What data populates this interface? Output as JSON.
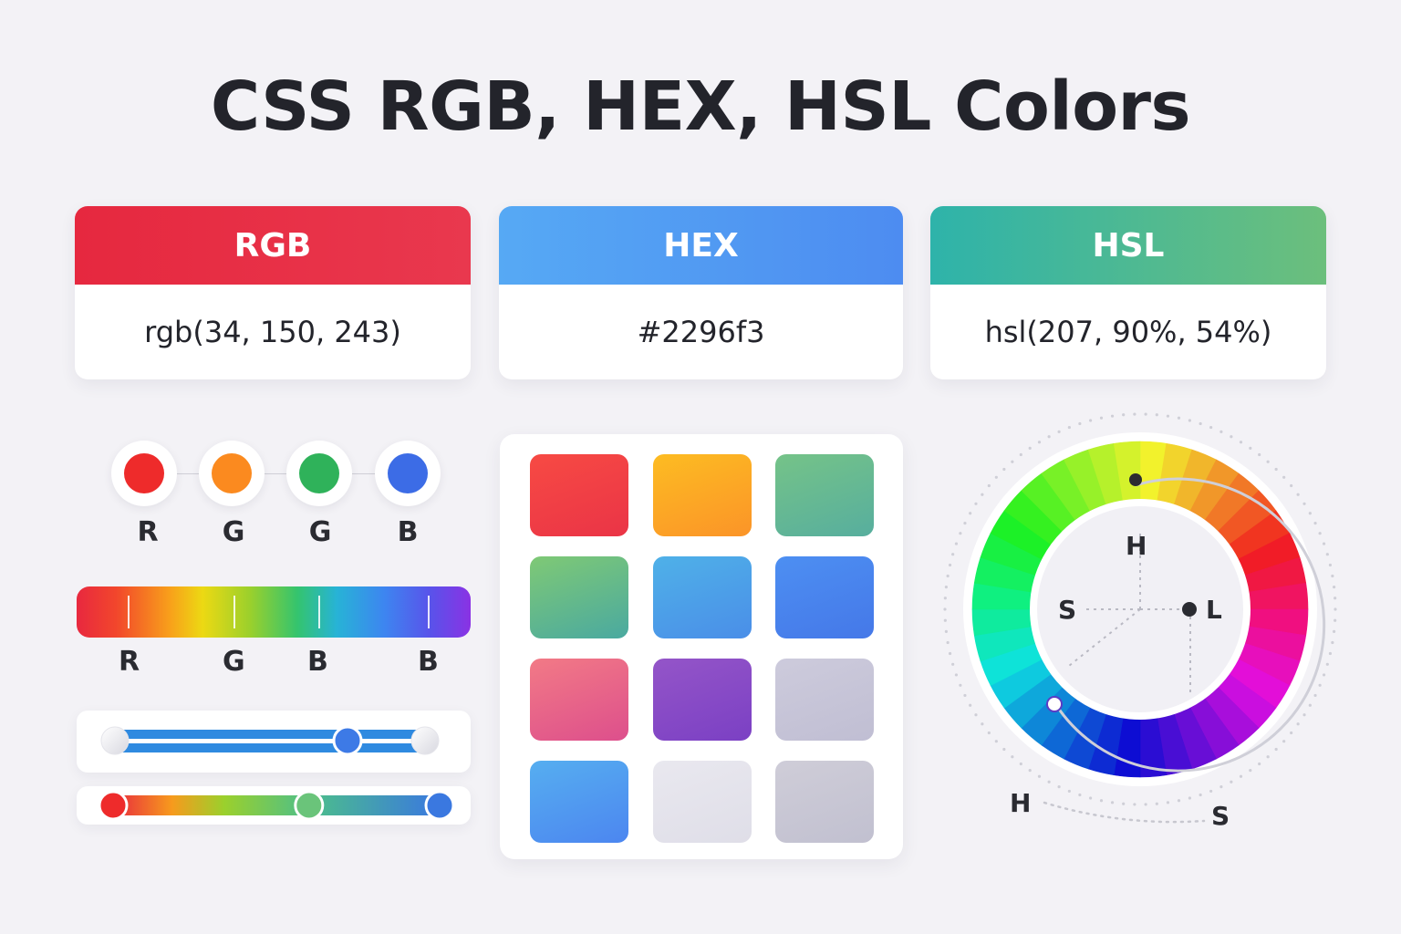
{
  "title": "CSS RGB, HEX, HSL Colors",
  "cards": [
    {
      "label": "RGB",
      "value": "rgb(34, 150, 243)",
      "gradient_from": "#e6283f",
      "gradient_to": "#e9384e"
    },
    {
      "label": "HEX",
      "value": "#2296f3",
      "gradient_from": "#56a9f4",
      "gradient_to": "#4d8cf1"
    },
    {
      "label": "HSL",
      "value": "hsl(207, 90%, 54%)",
      "gradient_from": "#2eb3aa",
      "gradient_to": "#6cbf7c"
    }
  ],
  "channel_dots": [
    {
      "label": "R",
      "color": "#ee2b2b"
    },
    {
      "label": "G",
      "color": "#fb8a1f"
    },
    {
      "label": "G",
      "color": "#2fb25a"
    },
    {
      "label": "B",
      "color": "#3c6ce6"
    }
  ],
  "spectrum_labels": [
    "R",
    "G",
    "B",
    "B"
  ],
  "sliders": [
    {
      "name": "blue-slider",
      "value": 0.75,
      "thumb_color": "#3d7ae6"
    },
    {
      "name": "rainbow-slider",
      "value": 0.6,
      "thumb_color": "#6ac47a"
    }
  ],
  "swatches": [
    {
      "from": "#f74a44",
      "to": "#ea3446"
    },
    {
      "from": "#fdbc22",
      "to": "#fb9428"
    },
    {
      "from": "#75c388",
      "to": "#57ae9e"
    },
    {
      "from": "#7fc975",
      "to": "#4aa9a0"
    },
    {
      "from": "#4fb1e8",
      "to": "#4a8ee8"
    },
    {
      "from": "#4d8ff2",
      "to": "#4578e8"
    },
    {
      "from": "#f27a86",
      "to": "#dd4f8c"
    },
    {
      "from": "#9455c8",
      "to": "#7b40c4"
    },
    {
      "from": "#cdcbdc",
      "to": "#c0bed3"
    },
    {
      "from": "#56aef0",
      "to": "#4c86f0"
    },
    {
      "from": "#e9e8ef",
      "to": "#dfdee8"
    },
    {
      "from": "#cfcdd8",
      "to": "#c1c0d0"
    }
  ],
  "wheel": {
    "labels": {
      "hue": "H",
      "saturation": "S",
      "lightness": "L"
    },
    "outer_labels": {
      "hue": "H",
      "saturation": "S"
    }
  }
}
